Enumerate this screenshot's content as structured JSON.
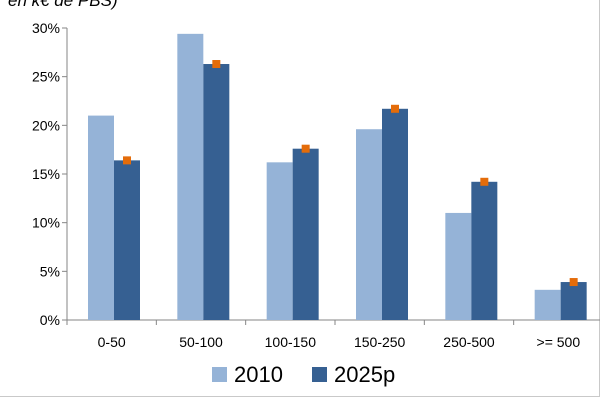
{
  "top_caption": "en k€ de PBS)",
  "chart_data": {
    "type": "bar",
    "categories": [
      "0-50",
      "50-100",
      "100-150",
      "150-250",
      "250-500",
      ">= 500"
    ],
    "series": [
      {
        "name": "2010",
        "values": [
          21.0,
          29.4,
          16.2,
          19.6,
          11.0,
          3.1
        ],
        "color": "#95b3d7"
      },
      {
        "name": "2025p",
        "values": [
          16.4,
          26.3,
          17.6,
          21.7,
          14.2,
          3.9
        ],
        "color": "#366092",
        "marker_color": "#e46c0a"
      }
    ],
    "y_tick_values": [
      0,
      5,
      10,
      15,
      20,
      25,
      30
    ],
    "y_tick_labels": [
      "0%",
      "5%",
      "10%",
      "15%",
      "20%",
      "25%",
      "30%"
    ],
    "ylim": [
      0,
      30
    ],
    "grid": false,
    "legend_position": "bottom"
  }
}
